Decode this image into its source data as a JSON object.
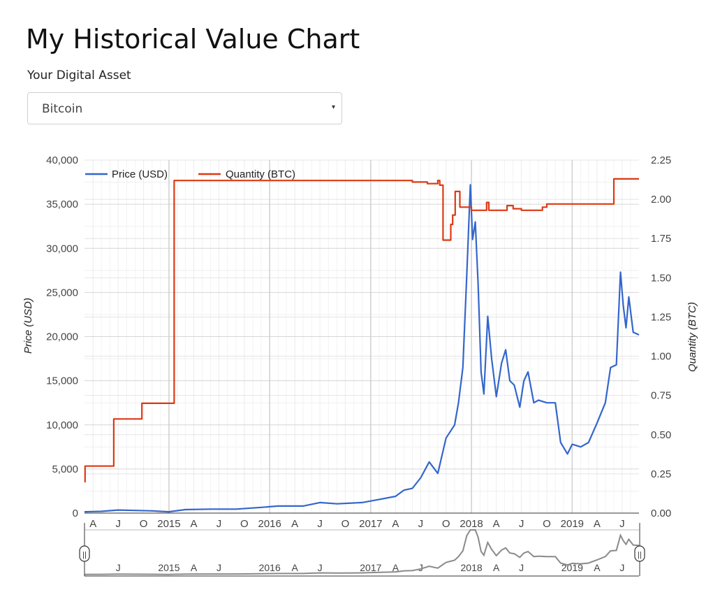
{
  "page": {
    "title": "My Historical Value Chart",
    "asset_label": "Your Digital Asset",
    "asset_select": {
      "value": "Bitcoin",
      "caret": "▾"
    }
  },
  "colors": {
    "price": "#3366cc",
    "quantity": "#dc3912",
    "grid": "#e0e0e0",
    "navigator": "#8a8a8a"
  },
  "chart_data": {
    "type": "line",
    "title": "",
    "legend_position": "top-left",
    "grid": true,
    "x_range": [
      "2014-03-01",
      "2019-08-31"
    ],
    "y_left": {
      "label": "Price (USD)",
      "range": [
        0,
        40000
      ],
      "ticks": [
        "0",
        "5,000",
        "10,000",
        "15,000",
        "20,000",
        "25,000",
        "30,000",
        "35,000",
        "40,000"
      ]
    },
    "y_right": {
      "label": "Quantity (BTC)",
      "range": [
        0,
        2.25
      ],
      "ticks": [
        "0.00",
        "0.25",
        "0.50",
        "0.75",
        "1.00",
        "1.25",
        "1.50",
        "1.75",
        "2.00",
        "2.25"
      ]
    },
    "x_ticks": [
      {
        "date": "2014-04-01",
        "label": "A"
      },
      {
        "date": "2014-07-01",
        "label": "J"
      },
      {
        "date": "2014-10-01",
        "label": "O"
      },
      {
        "date": "2015-01-01",
        "label": "2015"
      },
      {
        "date": "2015-04-01",
        "label": "A"
      },
      {
        "date": "2015-07-01",
        "label": "J"
      },
      {
        "date": "2015-10-01",
        "label": "O"
      },
      {
        "date": "2016-01-01",
        "label": "2016"
      },
      {
        "date": "2016-04-01",
        "label": "A"
      },
      {
        "date": "2016-07-01",
        "label": "J"
      },
      {
        "date": "2016-10-01",
        "label": "O"
      },
      {
        "date": "2017-01-01",
        "label": "2017"
      },
      {
        "date": "2017-04-01",
        "label": "A"
      },
      {
        "date": "2017-07-01",
        "label": "J"
      },
      {
        "date": "2017-10-01",
        "label": "O"
      },
      {
        "date": "2018-01-01",
        "label": "2018"
      },
      {
        "date": "2018-04-01",
        "label": "A"
      },
      {
        "date": "2018-07-01",
        "label": "J"
      },
      {
        "date": "2018-10-01",
        "label": "O"
      },
      {
        "date": "2019-01-01",
        "label": "2019"
      },
      {
        "date": "2019-04-01",
        "label": "A"
      },
      {
        "date": "2019-07-01",
        "label": "J"
      }
    ],
    "navigator_ticks": [
      {
        "date": "2014-07-01",
        "label": "J"
      },
      {
        "date": "2015-01-01",
        "label": "2015"
      },
      {
        "date": "2015-04-01",
        "label": "A"
      },
      {
        "date": "2015-07-01",
        "label": "J"
      },
      {
        "date": "2016-01-01",
        "label": "2016"
      },
      {
        "date": "2016-04-01",
        "label": "A"
      },
      {
        "date": "2016-07-01",
        "label": "J"
      },
      {
        "date": "2017-01-01",
        "label": "2017"
      },
      {
        "date": "2017-04-01",
        "label": "A"
      },
      {
        "date": "2017-07-01",
        "label": "J"
      },
      {
        "date": "2018-01-01",
        "label": "2018"
      },
      {
        "date": "2018-04-01",
        "label": "A"
      },
      {
        "date": "2018-07-01",
        "label": "J"
      },
      {
        "date": "2019-01-01",
        "label": "2019"
      },
      {
        "date": "2019-04-01",
        "label": "A"
      },
      {
        "date": "2019-07-01",
        "label": "J"
      }
    ],
    "series": [
      {
        "name": "Price (USD)",
        "axis": "left",
        "step": false,
        "points": [
          [
            "2014-03-01",
            150
          ],
          [
            "2014-05-01",
            200
          ],
          [
            "2014-07-01",
            350
          ],
          [
            "2014-09-01",
            300
          ],
          [
            "2014-11-01",
            250
          ],
          [
            "2015-01-01",
            150
          ],
          [
            "2015-03-01",
            400
          ],
          [
            "2015-06-01",
            450
          ],
          [
            "2015-09-01",
            450
          ],
          [
            "2015-12-01",
            650
          ],
          [
            "2016-02-01",
            800
          ],
          [
            "2016-05-01",
            800
          ],
          [
            "2016-07-01",
            1200
          ],
          [
            "2016-09-01",
            1050
          ],
          [
            "2016-12-01",
            1200
          ],
          [
            "2017-02-01",
            1550
          ],
          [
            "2017-04-01",
            1900
          ],
          [
            "2017-05-01",
            2600
          ],
          [
            "2017-06-01",
            2800
          ],
          [
            "2017-07-01",
            4000
          ],
          [
            "2017-08-01",
            5800
          ],
          [
            "2017-09-01",
            4500
          ],
          [
            "2017-10-01",
            8500
          ],
          [
            "2017-11-01",
            10000
          ],
          [
            "2017-11-15",
            12500
          ],
          [
            "2017-12-01",
            16500
          ],
          [
            "2017-12-15",
            27000
          ],
          [
            "2017-12-28",
            37200
          ],
          [
            "2018-01-05",
            31000
          ],
          [
            "2018-01-15",
            33000
          ],
          [
            "2018-01-25",
            26000
          ],
          [
            "2018-02-05",
            16000
          ],
          [
            "2018-02-15",
            13500
          ],
          [
            "2018-03-01",
            22300
          ],
          [
            "2018-03-15",
            17500
          ],
          [
            "2018-04-01",
            13200
          ],
          [
            "2018-04-20",
            17000
          ],
          [
            "2018-05-05",
            18500
          ],
          [
            "2018-05-20",
            15000
          ],
          [
            "2018-06-05",
            14500
          ],
          [
            "2018-06-25",
            12000
          ],
          [
            "2018-07-10",
            15000
          ],
          [
            "2018-07-25",
            16000
          ],
          [
            "2018-08-15",
            12500
          ],
          [
            "2018-09-01",
            12800
          ],
          [
            "2018-10-01",
            12500
          ],
          [
            "2018-11-01",
            12500
          ],
          [
            "2018-11-20",
            8000
          ],
          [
            "2018-12-15",
            6700
          ],
          [
            "2019-01-01",
            7800
          ],
          [
            "2019-02-01",
            7500
          ],
          [
            "2019-03-01",
            8000
          ],
          [
            "2019-04-01",
            10200
          ],
          [
            "2019-05-01",
            12500
          ],
          [
            "2019-05-20",
            16500
          ],
          [
            "2019-06-10",
            16800
          ],
          [
            "2019-06-25",
            27300
          ],
          [
            "2019-07-05",
            23500
          ],
          [
            "2019-07-15",
            21000
          ],
          [
            "2019-07-25",
            24500
          ],
          [
            "2019-08-10",
            20500
          ],
          [
            "2019-08-31",
            20200
          ]
        ]
      },
      {
        "name": "Quantity (BTC)",
        "axis": "right",
        "step": true,
        "points": [
          [
            "2014-03-01",
            0.2
          ],
          [
            "2014-03-03",
            0.3
          ],
          [
            "2014-06-15",
            0.6
          ],
          [
            "2014-09-25",
            0.7
          ],
          [
            "2015-01-20",
            2.12
          ],
          [
            "2017-06-01",
            2.11
          ],
          [
            "2017-07-25",
            2.1
          ],
          [
            "2017-09-01",
            2.12
          ],
          [
            "2017-09-08",
            2.09
          ],
          [
            "2017-09-20",
            1.74
          ],
          [
            "2017-10-18",
            1.84
          ],
          [
            "2017-10-25",
            1.9
          ],
          [
            "2017-11-03",
            2.05
          ],
          [
            "2017-11-20",
            1.95
          ],
          [
            "2018-01-01",
            1.93
          ],
          [
            "2018-02-25",
            1.98
          ],
          [
            "2018-03-05",
            1.93
          ],
          [
            "2018-05-10",
            1.96
          ],
          [
            "2018-06-01",
            1.94
          ],
          [
            "2018-07-01",
            1.93
          ],
          [
            "2018-08-01",
            1.93
          ],
          [
            "2018-09-15",
            1.95
          ],
          [
            "2018-10-01",
            1.97
          ],
          [
            "2019-06-01",
            2.13
          ],
          [
            "2019-08-31",
            2.13
          ]
        ]
      }
    ],
    "navigator": {
      "handle_glyph": "||"
    }
  }
}
